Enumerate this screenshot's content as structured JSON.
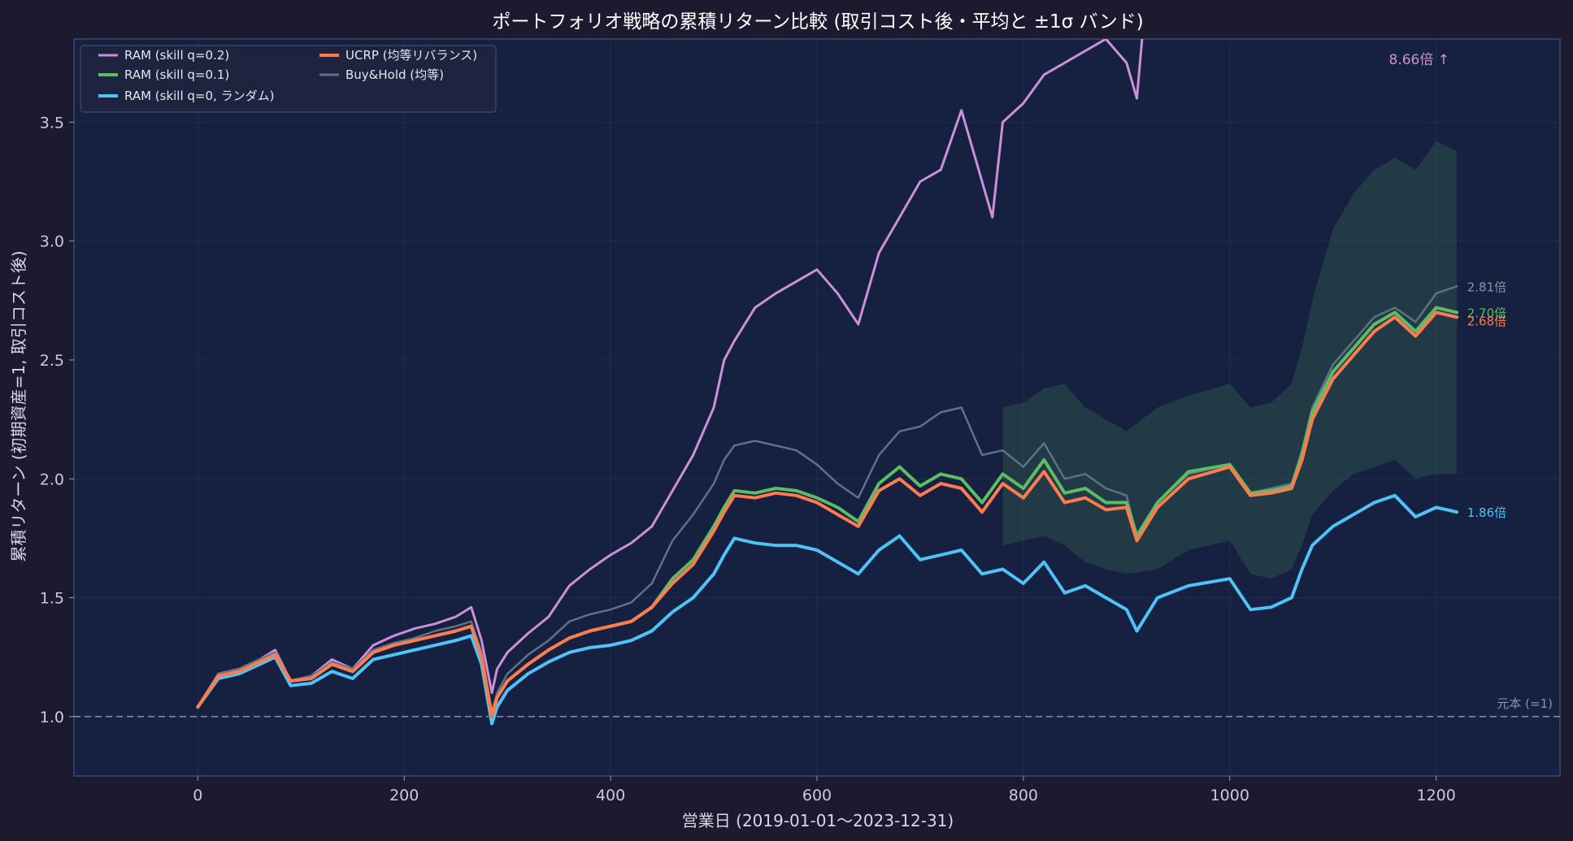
{
  "chart_data": {
    "type": "line",
    "title": "ポートフォリオ戦略の累積リターン比較 (取引コスト後・平均と ±1σ バンド)",
    "xlabel": "営業日 (2019-01-01〜2023-12-31)",
    "ylabel": "累積リターン (初期資産=1, 取引コスト後)",
    "xlim": [
      -120,
      1320
    ],
    "ylim": [
      0.75,
      3.85
    ],
    "x_ticks": [
      0,
      200,
      400,
      600,
      800,
      1000,
      1200
    ],
    "y_ticks": [
      1.0,
      1.5,
      2.0,
      2.5,
      3.0,
      3.5
    ],
    "grid": true,
    "legend_position": "top-left",
    "baseline": {
      "y": 1.0,
      "label": "元本 (=1)"
    },
    "offscale_note": "8.66倍 ↑",
    "colors": {
      "background": "#1b1a2e",
      "plot_bg": "#162040",
      "grid": "#2b3a5c"
    },
    "series": [
      {
        "name": "RAM (skill q=0.2)",
        "color": "#cc8fd9",
        "width": 3,
        "x": [
          0,
          20,
          40,
          60,
          75,
          90,
          110,
          130,
          150,
          170,
          190,
          210,
          230,
          250,
          265,
          275,
          285,
          290,
          300,
          320,
          340,
          360,
          380,
          400,
          420,
          440,
          460,
          480,
          500,
          510,
          520,
          540,
          560,
          580,
          600,
          620,
          640,
          660,
          680,
          700,
          720,
          740,
          760,
          770,
          780,
          800,
          820,
          840,
          860,
          880,
          900,
          910,
          915
        ],
        "y": [
          1.04,
          1.18,
          1.2,
          1.24,
          1.28,
          1.15,
          1.17,
          1.24,
          1.2,
          1.3,
          1.34,
          1.37,
          1.39,
          1.42,
          1.46,
          1.32,
          1.1,
          1.2,
          1.27,
          1.35,
          1.42,
          1.55,
          1.62,
          1.68,
          1.73,
          1.8,
          1.95,
          2.1,
          2.3,
          2.5,
          2.58,
          2.72,
          2.78,
          2.83,
          2.88,
          2.78,
          2.65,
          2.95,
          3.1,
          3.25,
          3.3,
          3.55,
          3.25,
          3.1,
          3.5,
          3.58,
          3.7,
          3.75,
          3.8,
          3.85,
          3.75,
          3.6,
          3.85
        ]
      },
      {
        "name": "RAM (skill q=0.1)",
        "color": "#5cbd64",
        "width": 4,
        "x": [
          0,
          20,
          40,
          60,
          75,
          90,
          110,
          130,
          150,
          170,
          190,
          210,
          230,
          250,
          265,
          275,
          285,
          290,
          300,
          320,
          340,
          360,
          380,
          400,
          420,
          440,
          460,
          480,
          500,
          510,
          520,
          540,
          560,
          580,
          600,
          620,
          640,
          660,
          680,
          700,
          720,
          740,
          760,
          780,
          800,
          820,
          840,
          860,
          880,
          900,
          910,
          930,
          960,
          1000,
          1020,
          1040,
          1060,
          1070,
          1080,
          1100,
          1120,
          1140,
          1160,
          1180,
          1200,
          1220
        ],
        "y": [
          1.04,
          1.17,
          1.19,
          1.23,
          1.26,
          1.15,
          1.16,
          1.22,
          1.19,
          1.27,
          1.3,
          1.32,
          1.34,
          1.36,
          1.38,
          1.25,
          1.0,
          1.08,
          1.15,
          1.22,
          1.28,
          1.33,
          1.36,
          1.38,
          1.4,
          1.46,
          1.58,
          1.66,
          1.8,
          1.88,
          1.95,
          1.94,
          1.96,
          1.95,
          1.92,
          1.88,
          1.82,
          1.98,
          2.05,
          1.97,
          2.02,
          2.0,
          1.9,
          2.02,
          1.96,
          2.08,
          1.94,
          1.96,
          1.9,
          1.9,
          1.76,
          1.9,
          2.03,
          2.06,
          1.94,
          1.95,
          1.97,
          2.1,
          2.28,
          2.45,
          2.55,
          2.65,
          2.7,
          2.62,
          2.72,
          2.7
        ]
      },
      {
        "name": "RAM (skill q=0, ランダム)",
        "color": "#4fc3f7",
        "width": 4,
        "x": [
          0,
          20,
          40,
          60,
          75,
          90,
          110,
          130,
          150,
          170,
          190,
          210,
          230,
          250,
          265,
          275,
          285,
          290,
          300,
          320,
          340,
          360,
          380,
          400,
          420,
          440,
          460,
          480,
          500,
          510,
          520,
          540,
          560,
          580,
          600,
          620,
          640,
          660,
          680,
          700,
          720,
          740,
          760,
          780,
          800,
          820,
          840,
          860,
          880,
          900,
          910,
          930,
          960,
          1000,
          1020,
          1040,
          1060,
          1070,
          1080,
          1100,
          1120,
          1140,
          1160,
          1180,
          1200,
          1220
        ],
        "y": [
          1.04,
          1.16,
          1.18,
          1.22,
          1.25,
          1.13,
          1.14,
          1.19,
          1.16,
          1.24,
          1.26,
          1.28,
          1.3,
          1.32,
          1.34,
          1.22,
          0.97,
          1.04,
          1.11,
          1.18,
          1.23,
          1.27,
          1.29,
          1.3,
          1.32,
          1.36,
          1.44,
          1.5,
          1.6,
          1.68,
          1.75,
          1.73,
          1.72,
          1.72,
          1.7,
          1.65,
          1.6,
          1.7,
          1.76,
          1.66,
          1.68,
          1.7,
          1.6,
          1.62,
          1.56,
          1.65,
          1.52,
          1.55,
          1.5,
          1.45,
          1.36,
          1.5,
          1.55,
          1.58,
          1.45,
          1.46,
          1.5,
          1.62,
          1.72,
          1.8,
          1.85,
          1.9,
          1.93,
          1.84,
          1.88,
          1.86
        ]
      },
      {
        "name": "UCRP (均等リバランス)",
        "color": "#ff7b4f",
        "width": 4,
        "x": [
          0,
          20,
          40,
          60,
          75,
          90,
          110,
          130,
          150,
          170,
          190,
          210,
          230,
          250,
          265,
          275,
          285,
          290,
          300,
          320,
          340,
          360,
          380,
          400,
          420,
          440,
          460,
          480,
          500,
          510,
          520,
          540,
          560,
          580,
          600,
          620,
          640,
          660,
          680,
          700,
          720,
          740,
          760,
          780,
          800,
          820,
          840,
          860,
          880,
          900,
          910,
          930,
          960,
          1000,
          1020,
          1040,
          1060,
          1070,
          1080,
          1100,
          1120,
          1140,
          1160,
          1180,
          1200,
          1220
        ],
        "y": [
          1.04,
          1.17,
          1.19,
          1.23,
          1.26,
          1.15,
          1.16,
          1.22,
          1.19,
          1.27,
          1.3,
          1.32,
          1.34,
          1.36,
          1.38,
          1.25,
          1.0,
          1.08,
          1.15,
          1.22,
          1.28,
          1.33,
          1.36,
          1.38,
          1.4,
          1.46,
          1.56,
          1.64,
          1.78,
          1.86,
          1.93,
          1.92,
          1.94,
          1.93,
          1.9,
          1.85,
          1.8,
          1.95,
          2.0,
          1.93,
          1.98,
          1.96,
          1.86,
          1.98,
          1.92,
          2.03,
          1.9,
          1.92,
          1.87,
          1.88,
          1.74,
          1.88,
          2.0,
          2.05,
          1.93,
          1.94,
          1.96,
          2.08,
          2.25,
          2.42,
          2.52,
          2.62,
          2.68,
          2.6,
          2.7,
          2.68
        ]
      },
      {
        "name": "Buy&Hold (均等)",
        "color": "#5f7285",
        "width": 2.5,
        "x": [
          0,
          20,
          40,
          60,
          75,
          90,
          110,
          130,
          150,
          170,
          190,
          210,
          230,
          250,
          265,
          275,
          285,
          290,
          300,
          320,
          340,
          360,
          380,
          400,
          420,
          440,
          460,
          480,
          500,
          510,
          520,
          540,
          560,
          580,
          600,
          620,
          640,
          660,
          680,
          700,
          720,
          740,
          760,
          780,
          800,
          820,
          840,
          860,
          880,
          900,
          910,
          930,
          960,
          1000,
          1020,
          1040,
          1060,
          1070,
          1080,
          1100,
          1120,
          1140,
          1160,
          1180,
          1200,
          1220
        ],
        "y": [
          1.04,
          1.18,
          1.2,
          1.24,
          1.27,
          1.15,
          1.17,
          1.23,
          1.2,
          1.28,
          1.31,
          1.33,
          1.36,
          1.38,
          1.4,
          1.27,
          1.02,
          1.1,
          1.18,
          1.26,
          1.32,
          1.4,
          1.43,
          1.45,
          1.48,
          1.56,
          1.74,
          1.85,
          1.98,
          2.08,
          2.14,
          2.16,
          2.14,
          2.12,
          2.06,
          1.98,
          1.92,
          2.1,
          2.2,
          2.22,
          2.28,
          2.3,
          2.1,
          2.12,
          2.05,
          2.15,
          2.0,
          2.02,
          1.96,
          1.93,
          1.76,
          1.9,
          2.02,
          2.06,
          1.94,
          1.96,
          1.98,
          2.12,
          2.3,
          2.48,
          2.58,
          2.68,
          2.72,
          2.66,
          2.78,
          2.81
        ]
      }
    ],
    "end_labels": [
      {
        "series": "Buy&Hold (均等)",
        "text": "2.81倍",
        "value": 2.81,
        "color": "#8896a8"
      },
      {
        "series": "RAM (skill q=0.1)",
        "text": "2.70倍",
        "value": 2.7,
        "color": "#5cbd64"
      },
      {
        "series": "UCRP (均等リバランス)",
        "text": "2.68倍",
        "value": 2.68,
        "color": "#ff7b4f"
      },
      {
        "series": "RAM (skill q=0, ランダム)",
        "text": "1.86倍",
        "value": 1.86,
        "color": "#4fc3f7"
      }
    ],
    "band": {
      "color": "#2e5a4e",
      "x": [
        780,
        800,
        820,
        840,
        860,
        880,
        900,
        930,
        960,
        1000,
        1020,
        1040,
        1060,
        1070,
        1080,
        1100,
        1120,
        1140,
        1160,
        1180,
        1200,
        1220
      ],
      "upper": [
        2.3,
        2.32,
        2.38,
        2.4,
        2.3,
        2.25,
        2.2,
        2.3,
        2.35,
        2.4,
        2.3,
        2.32,
        2.4,
        2.55,
        2.75,
        3.05,
        3.2,
        3.3,
        3.35,
        3.3,
        3.42,
        3.38
      ],
      "lower": [
        1.72,
        1.74,
        1.76,
        1.72,
        1.65,
        1.62,
        1.6,
        1.62,
        1.7,
        1.74,
        1.6,
        1.58,
        1.62,
        1.72,
        1.85,
        1.95,
        2.02,
        2.05,
        2.08,
        2.0,
        2.02,
        2.02
      ]
    }
  }
}
